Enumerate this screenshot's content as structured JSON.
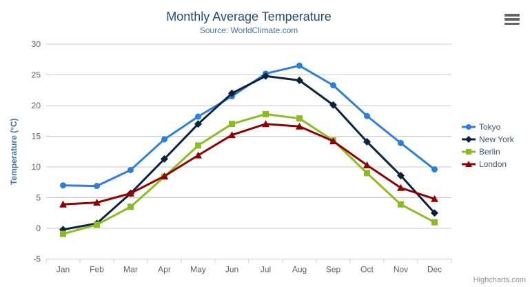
{
  "chart_data": {
    "type": "line",
    "title": "Monthly Average Temperature",
    "subtitle": "Source: WorldClimate.com",
    "categories": [
      "Jan",
      "Feb",
      "Mar",
      "Apr",
      "May",
      "Jun",
      "Jul",
      "Aug",
      "Sep",
      "Oct",
      "Nov",
      "Dec"
    ],
    "xlabel": "",
    "ylabel": "Temperature (°C)",
    "ylim": [
      -5,
      30
    ],
    "tick_interval": 5,
    "grid": true,
    "legend_position": "right",
    "series": [
      {
        "name": "Tokyo",
        "color": "#2f7ed8",
        "marker": "circle",
        "values": [
          7.0,
          6.9,
          9.5,
          14.5,
          18.2,
          21.5,
          25.2,
          26.5,
          23.3,
          18.3,
          13.9,
          9.6
        ]
      },
      {
        "name": "New York",
        "color": "#0d233a",
        "marker": "diamond",
        "values": [
          -0.2,
          0.8,
          5.7,
          11.3,
          17.0,
          22.0,
          24.8,
          24.1,
          20.1,
          14.1,
          8.6,
          2.5
        ]
      },
      {
        "name": "Berlin",
        "color": "#8bbc21",
        "marker": "square",
        "values": [
          -0.9,
          0.6,
          3.5,
          8.4,
          13.5,
          17.0,
          18.6,
          17.9,
          14.3,
          9.0,
          3.9,
          1.0
        ]
      },
      {
        "name": "London",
        "color": "#910000",
        "marker": "triangle",
        "values": [
          3.9,
          4.2,
          5.7,
          8.5,
          11.9,
          15.2,
          17.0,
          16.6,
          14.2,
          10.3,
          6.6,
          4.8
        ]
      }
    ]
  },
  "credits": {
    "label": "Highcharts.com"
  },
  "colors": {
    "grid": "#C8C8C8",
    "axis_line": "#C0D0E0",
    "tick_label": "#606060",
    "title": "#274b6d",
    "subtitle": "#4572A7",
    "axis_title": "#4572A7",
    "legend_text": "#3E576F"
  }
}
